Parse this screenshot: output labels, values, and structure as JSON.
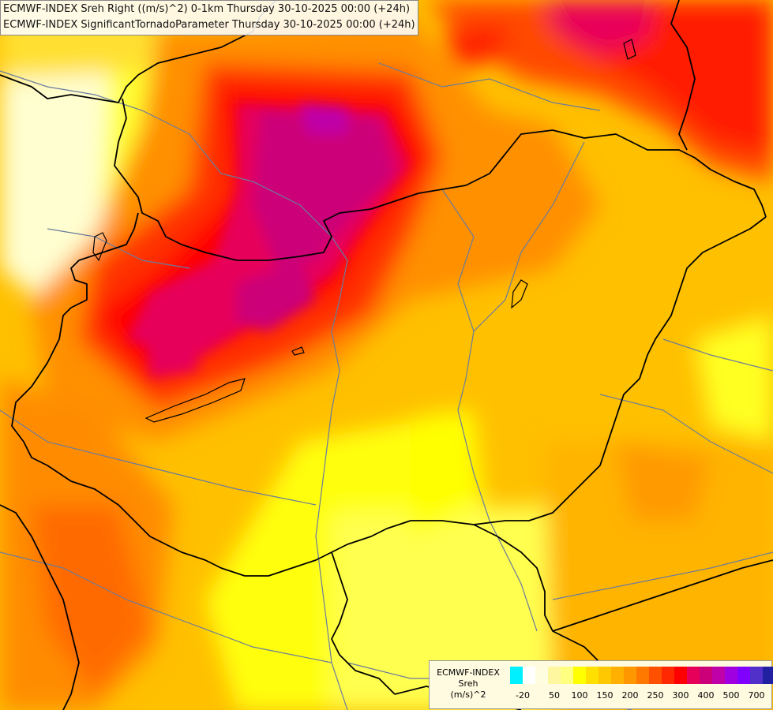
{
  "titles": [
    "ECMWF-INDEX Sreh Right ((m/s)^2) 0-1km Thursday 30-10-2025 00:00 (+24h)",
    "ECMWF-INDEX SignificantTornadoParameter Thursday 30-10-2025 00:00 (+24h)"
  ],
  "legend": {
    "title_lines": [
      "ECMWF-INDEX",
      "Sreh",
      "(m/s)^2"
    ],
    "colors": [
      "#00f0ff",
      "#ffffff",
      "#fffde0",
      "#fff6a0",
      "#ffff80",
      "#ffff00",
      "#ffe000",
      "#ffc800",
      "#ffb000",
      "#ff9800",
      "#ff7800",
      "#ff5000",
      "#ff2800",
      "#ff0000",
      "#e6005a",
      "#cc0078",
      "#c000a8",
      "#a000e0",
      "#8000ff",
      "#5030c8",
      "#2020a0",
      "#000080"
    ],
    "tick_labels": [
      "-20",
      "50",
      "100",
      "150",
      "200",
      "250",
      "300",
      "400",
      "500",
      "700"
    ]
  },
  "colors": {
    "yellow_pale": "#ffffc8",
    "yellow": "#ffff00",
    "orange_yellow": "#ffd000",
    "orange": "#ffa000",
    "orange_red": "#ff6000",
    "red": "#ff2000",
    "crimson": "#e6005a",
    "magenta": "#cc0078",
    "border": "#000000",
    "river": "#6a7c9c"
  }
}
